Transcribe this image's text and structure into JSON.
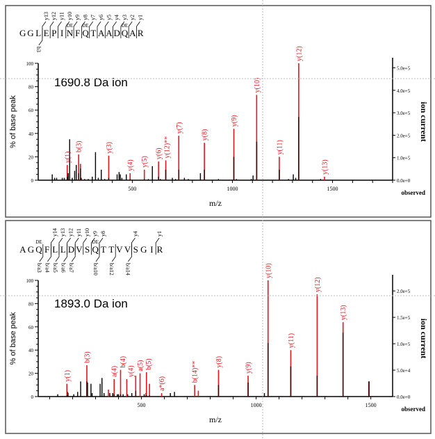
{
  "colors": {
    "matched": "#e8141e",
    "unmatched": "#000000",
    "frame": "#555555",
    "crosshair": "#bbbbbb"
  },
  "chart_data": [
    {
      "type": "bar",
      "title": "1690.8 Da ion",
      "sequence": [
        "G",
        "G",
        "L",
        "E",
        "P",
        "I",
        "N",
        "F",
        "Q",
        "T",
        "A",
        "A",
        "D",
        "Q",
        "A",
        "R"
      ],
      "modified_positions": [
        6,
        8,
        13
      ],
      "modification_label": "DE",
      "y_breaks": [
        {
          "after": 2,
          "label": "y13"
        },
        {
          "after": 3,
          "label": "y12"
        },
        {
          "after": 4,
          "label": "y11"
        },
        {
          "after": 5,
          "label": "y10"
        },
        {
          "after": 6,
          "label": "y9"
        },
        {
          "after": 7,
          "label": "y8"
        },
        {
          "after": 8,
          "label": "y7"
        },
        {
          "after": 9,
          "label": "y6"
        },
        {
          "after": 10,
          "label": "y5"
        },
        {
          "after": 11,
          "label": "y4"
        },
        {
          "after": 12,
          "label": "y3"
        },
        {
          "after": 13,
          "label": "y2"
        },
        {
          "after": 14,
          "label": "y1"
        }
      ],
      "b_breaks": [
        {
          "after": 2,
          "label": "b3"
        }
      ],
      "xlabel": "m/z",
      "ylabel": "% of base peak",
      "y2label": "ion current",
      "corner_label": "observed",
      "xlim": [
        30,
        1800
      ],
      "ylim": [
        0,
        100
      ],
      "y2lim": [
        0,
        520000
      ],
      "x_ticks": [
        500,
        1000,
        1500
      ],
      "y_ticks": [
        0,
        20,
        40,
        60,
        80,
        100
      ],
      "y2_ticks": [
        "0.0e+0",
        "1.0e+5",
        "2.0e+5",
        "3.0e+5",
        "4.0e+5",
        "5.0e+5"
      ],
      "y2_tick_values": [
        0,
        100000,
        200000,
        300000,
        400000,
        500000
      ],
      "matched_peaks": [
        {
          "mz": 175,
          "pct": 13,
          "inner": 3,
          "label": "y(1)"
        },
        {
          "mz": 232,
          "pct": 22,
          "inner": 6,
          "label": "b(3)"
        },
        {
          "mz": 382,
          "pct": 21,
          "inner": 2,
          "label": "y(3)"
        },
        {
          "mz": 489,
          "pct": 6,
          "inner": 1,
          "label": "y(4)"
        },
        {
          "mz": 560,
          "pct": 9,
          "inner": 1,
          "label": "y(5)"
        },
        {
          "mz": 631,
          "pct": 16,
          "inner": 3,
          "label": "y(6)"
        },
        {
          "mz": 667,
          "pct": 17,
          "inner": 9,
          "label": "y(12)**"
        },
        {
          "mz": 732,
          "pct": 38,
          "inner": 9,
          "label": "y(7)"
        },
        {
          "mz": 860,
          "pct": 32,
          "inner": 9,
          "label": "y(8)"
        },
        {
          "mz": 1007,
          "pct": 44,
          "inner": 20,
          "label": "y(9)"
        },
        {
          "mz": 1121,
          "pct": 73,
          "inner": 33,
          "label": "y(10)"
        },
        {
          "mz": 1234,
          "pct": 20,
          "inner": 9,
          "label": "y(11)"
        },
        {
          "mz": 1331,
          "pct": 100,
          "inner": 54,
          "label": "y(12)"
        },
        {
          "mz": 1460,
          "pct": 3,
          "inner": 0,
          "label": "y(13)"
        },
        {
          "mz": 241,
          "pct": 14,
          "inner": 10,
          "label": ""
        }
      ],
      "other_peaks": [
        [
          100,
          5
        ],
        [
          112,
          2
        ],
        [
          122,
          2
        ],
        [
          150,
          2
        ],
        [
          160,
          2
        ],
        [
          180,
          6
        ],
        [
          187,
          35
        ],
        [
          200,
          2
        ],
        [
          212,
          8
        ],
        [
          220,
          13
        ],
        [
          245,
          2
        ],
        [
          262,
          1
        ],
        [
          280,
          1
        ],
        [
          300,
          3
        ],
        [
          316,
          24
        ],
        [
          330,
          2
        ],
        [
          345,
          9
        ],
        [
          362,
          1
        ],
        [
          424,
          5
        ],
        [
          434,
          7
        ],
        [
          440,
          5
        ],
        [
          448,
          2
        ],
        [
          470,
          5
        ],
        [
          580,
          1
        ],
        [
          600,
          12
        ],
        [
          640,
          1
        ],
        [
          700,
          2
        ],
        [
          716,
          1
        ],
        [
          760,
          2
        ],
        [
          780,
          1
        ],
        [
          840,
          6
        ],
        [
          930,
          1
        ],
        [
          1020,
          1
        ],
        [
          1094,
          1
        ],
        [
          1103,
          4
        ],
        [
          1280,
          1
        ],
        [
          1304,
          5
        ],
        [
          1316,
          2
        ],
        [
          1440,
          1
        ]
      ]
    },
    {
      "type": "bar",
      "title": "1893.0 Da ion",
      "sequence": [
        "A",
        "G",
        "Q",
        "F",
        "L",
        "L",
        "D",
        "V",
        "S",
        "Q",
        "T",
        "T",
        "V",
        "V",
        "S",
        "G",
        "I",
        "R"
      ],
      "modified_positions": [
        2,
        9
      ],
      "modification_label": "DE",
      "y_breaks": [
        {
          "after": 3,
          "label": "y14"
        },
        {
          "after": 4,
          "label": "y13"
        },
        {
          "after": 5,
          "label": "y12"
        },
        {
          "after": 6,
          "label": "y11"
        },
        {
          "after": 7,
          "label": "y10"
        },
        {
          "after": 8,
          "label": "y9"
        },
        {
          "after": 9,
          "label": "y8"
        },
        {
          "after": 13,
          "label": "y4"
        },
        {
          "after": 16,
          "label": "y1"
        }
      ],
      "b_breaks": [
        {
          "after": 2,
          "label": "b/a3"
        },
        {
          "after": 3,
          "label": "b/a4"
        },
        {
          "after": 4,
          "label": "b/a5"
        },
        {
          "after": 5,
          "label": "b/a6"
        },
        {
          "after": 6,
          "label": "b/a7"
        },
        {
          "after": 9,
          "label": "b/a10"
        },
        {
          "after": 11,
          "label": "b/a12"
        },
        {
          "after": 13,
          "label": "b/a14"
        }
      ],
      "xlabel": "m/z",
      "ylabel": "% of base peak",
      "y2label": "ion current",
      "corner_label": "observed",
      "xlim": [
        50,
        1595
      ],
      "ylim": [
        0,
        100
      ],
      "y2lim": [
        0,
        220000
      ],
      "x_ticks": [
        500,
        1000,
        1500
      ],
      "y_ticks": [
        0,
        20,
        40,
        60,
        80,
        100
      ],
      "y2_ticks": [
        "0.0e+0",
        "5.0e+4",
        "1.0e+5",
        "1.5e+5",
        "2.0e+5"
      ],
      "y2_tick_values": [
        0,
        50000,
        100000,
        150000,
        200000
      ],
      "matched_peaks": [
        {
          "mz": 175,
          "pct": 11,
          "inner": 1,
          "label": "y(1)"
        },
        {
          "mz": 262,
          "pct": 27,
          "inner": 13,
          "label": "b(3)"
        },
        {
          "mz": 381,
          "pct": 15,
          "inner": 2,
          "label": "a(4)"
        },
        {
          "mz": 409,
          "pct": 23,
          "inner": 2,
          "label": "b(4)"
        },
        {
          "mz": 436,
          "pct": 15,
          "inner": 0,
          "label": "y(4)"
        },
        {
          "mz": 475,
          "pct": 18,
          "inner": 5,
          "label": ""
        },
        {
          "mz": 494,
          "pct": 20,
          "inner": 0,
          "label": "a(5)"
        },
        {
          "mz": 522,
          "pct": 21,
          "inner": 1,
          "label": "b(5)"
        },
        {
          "mz": 535,
          "pct": 11,
          "inner": 1,
          "label": ""
        },
        {
          "mz": 588,
          "pct": 3,
          "inner": 0,
          "label": "a*(6)"
        },
        {
          "mz": 732,
          "pct": 10,
          "inner": 0,
          "label": "b(14)**"
        },
        {
          "mz": 748,
          "pct": 5,
          "inner": 0,
          "label": ""
        },
        {
          "mz": 836,
          "pct": 23,
          "inner": 10,
          "label": "y(8)"
        },
        {
          "mz": 965,
          "pct": 18,
          "inner": 12,
          "label": "y(9)"
        },
        {
          "mz": 1052,
          "pct": 100,
          "inner": 46,
          "label": "y(10)"
        },
        {
          "mz": 1151,
          "pct": 40,
          "inner": 26,
          "label": "y(11)"
        },
        {
          "mz": 1266,
          "pct": 88,
          "inner": 18,
          "label": "y(12)"
        },
        {
          "mz": 1379,
          "pct": 64,
          "inner": 55,
          "label": "y(13)"
        },
        {
          "mz": 1492,
          "pct": 13,
          "inner": 13,
          "label": ""
        },
        {
          "mz": 356,
          "pct": 6,
          "inner": 0,
          "label": ""
        }
      ],
      "other_peaks": [
        [
          135,
          2
        ],
        [
          178,
          4
        ],
        [
          180,
          3
        ],
        [
          205,
          2
        ],
        [
          222,
          4
        ],
        [
          235,
          13
        ],
        [
          265,
          12
        ],
        [
          280,
          11
        ],
        [
          285,
          3
        ],
        [
          320,
          11
        ],
        [
          328,
          16
        ],
        [
          337,
          3
        ],
        [
          362,
          3
        ],
        [
          375,
          3
        ],
        [
          395,
          2
        ],
        [
          400,
          2
        ],
        [
          420,
          2
        ],
        [
          440,
          2
        ],
        [
          458,
          3
        ],
        [
          512,
          2
        ],
        [
          520,
          3
        ],
        [
          626,
          3
        ],
        [
          644,
          4
        ],
        [
          1036,
          3
        ],
        [
          1491,
          13
        ]
      ]
    }
  ]
}
